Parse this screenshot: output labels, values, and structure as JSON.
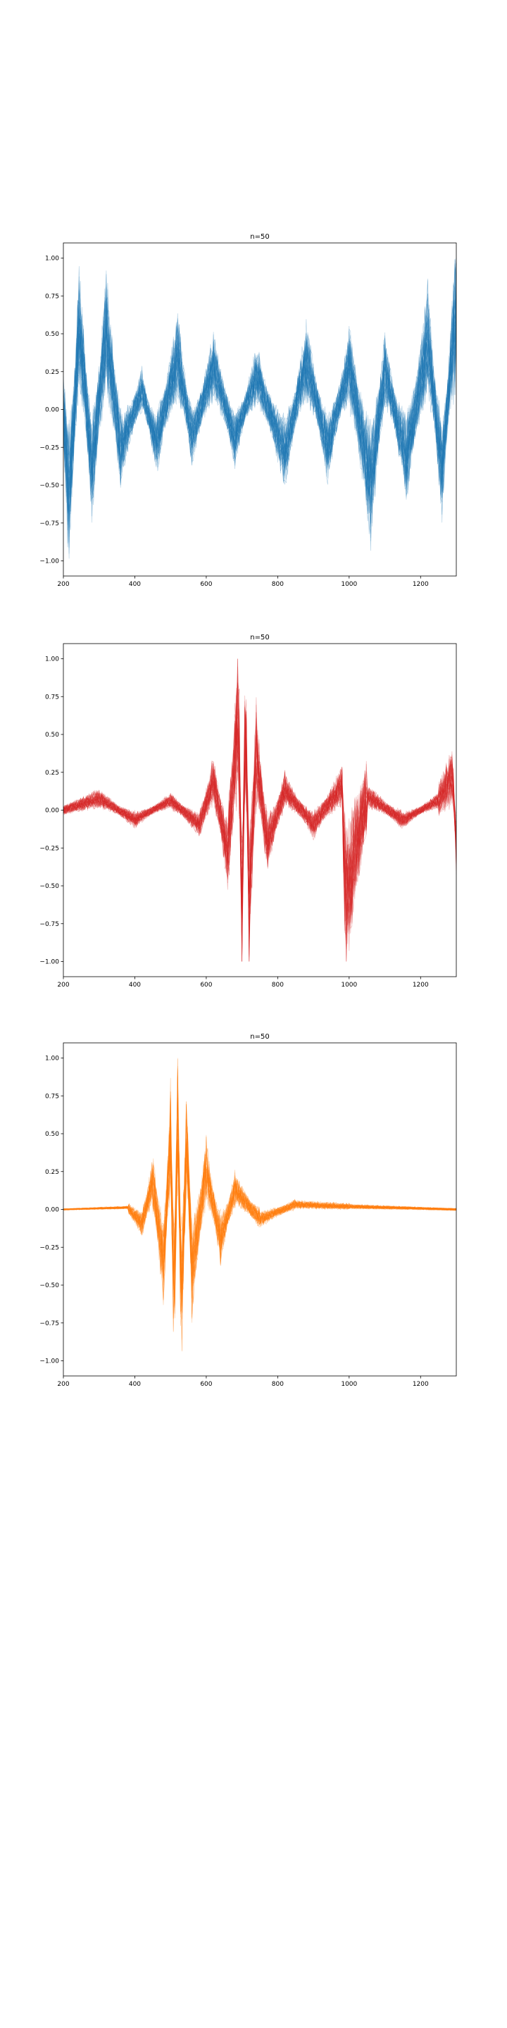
{
  "chart_data": [
    {
      "type": "line",
      "title": "n=50",
      "xlabel": "",
      "ylabel": "",
      "xlim": [
        200,
        1300
      ],
      "ylim": [
        -1.1,
        1.1
      ],
      "xticks": [
        200,
        400,
        600,
        800,
        1000,
        1200
      ],
      "xtick_labels": [
        "200",
        "400",
        "600",
        "800",
        "1000",
        "1200"
      ],
      "yticks": [
        1.0,
        0.75,
        0.5,
        0.25,
        0.0,
        -0.25,
        -0.5,
        -0.75,
        -1.0
      ],
      "ytick_labels": [
        "1.00",
        "0.75",
        "0.50",
        "0.25",
        "0.00",
        "−0.25",
        "−0.50",
        "−0.75",
        "−1.00"
      ],
      "grid": false,
      "legend": "none",
      "color": "#1f77b4",
      "n_series": 50,
      "series_profile": {
        "shape": "noise rising after x≈700, sparse spikes earlier",
        "points": [
          [
            200,
            0.0
          ],
          [
            215,
            -0.95
          ],
          [
            245,
            0.84
          ],
          [
            280,
            -0.6
          ],
          [
            320,
            0.8
          ],
          [
            360,
            -0.4
          ],
          [
            420,
            0.2
          ],
          [
            460,
            -0.35
          ],
          [
            520,
            0.55
          ],
          [
            560,
            -0.3
          ],
          [
            620,
            0.45
          ],
          [
            680,
            -0.3
          ],
          [
            740,
            0.35
          ],
          [
            820,
            -0.45
          ],
          [
            880,
            0.5
          ],
          [
            940,
            -0.4
          ],
          [
            1000,
            0.45
          ],
          [
            1060,
            -0.77
          ],
          [
            1100,
            0.4
          ],
          [
            1160,
            -0.5
          ],
          [
            1220,
            0.7
          ],
          [
            1260,
            -0.6
          ],
          [
            1290,
            0.68
          ],
          [
            1300,
            1.0
          ]
        ]
      }
    },
    {
      "type": "line",
      "title": "n=50",
      "xlabel": "",
      "ylabel": "",
      "xlim": [
        200,
        1300
      ],
      "ylim": [
        -1.1,
        1.1
      ],
      "xticks": [
        200,
        400,
        600,
        800,
        1000,
        1200
      ],
      "xtick_labels": [
        "200",
        "400",
        "600",
        "800",
        "1000",
        "1200"
      ],
      "yticks": [
        1.0,
        0.75,
        0.5,
        0.25,
        0.0,
        -0.25,
        -0.5,
        -0.75,
        -1.0
      ],
      "ytick_labels": [
        "1.00",
        "0.75",
        "0.50",
        "0.25",
        "0.00",
        "−0.25",
        "−0.50",
        "−0.75",
        "−1.00"
      ],
      "grid": false,
      "legend": "none",
      "color": "#d62728",
      "n_series": 50,
      "series_profile": {
        "shape": "burst centered near x≈700, low noise elsewhere",
        "points": [
          [
            200,
            0.0
          ],
          [
            300,
            0.12
          ],
          [
            400,
            -0.1
          ],
          [
            500,
            0.1
          ],
          [
            580,
            -0.15
          ],
          [
            620,
            0.3
          ],
          [
            660,
            -0.45
          ],
          [
            690,
            1.0
          ],
          [
            700,
            -1.0
          ],
          [
            710,
            1.0
          ],
          [
            720,
            -0.95
          ],
          [
            740,
            0.6
          ],
          [
            770,
            -0.35
          ],
          [
            820,
            0.2
          ],
          [
            900,
            -0.15
          ],
          [
            980,
            0.25
          ],
          [
            990,
            -0.9
          ],
          [
            1050,
            0.15
          ],
          [
            1150,
            -0.1
          ],
          [
            1250,
            0.1
          ],
          [
            1290,
            0.35
          ],
          [
            1300,
            -0.35
          ]
        ]
      }
    },
    {
      "type": "line",
      "title": "n=50",
      "xlabel": "",
      "ylabel": "",
      "xlim": [
        200,
        1300
      ],
      "ylim": [
        -1.1,
        1.1
      ],
      "xticks": [
        200,
        400,
        600,
        800,
        1000,
        1200
      ],
      "xtick_labels": [
        "200",
        "400",
        "600",
        "800",
        "1000",
        "1200"
      ],
      "yticks": [
        1.0,
        0.75,
        0.5,
        0.25,
        0.0,
        -0.25,
        -0.5,
        -0.75,
        -1.0
      ],
      "ytick_labels": [
        "1.00",
        "0.75",
        "0.50",
        "0.25",
        "0.00",
        "−0.25",
        "−0.50",
        "−0.75",
        "−1.00"
      ],
      "grid": false,
      "legend": "none",
      "color": "#ff7f0e",
      "n_series": 50,
      "series_profile": {
        "shape": "burst centered near x≈520, decaying tail",
        "points": [
          [
            200,
            0.0
          ],
          [
            380,
            0.02
          ],
          [
            420,
            -0.15
          ],
          [
            450,
            0.3
          ],
          [
            480,
            -0.55
          ],
          [
            500,
            0.7
          ],
          [
            510,
            -1.0
          ],
          [
            520,
            1.0
          ],
          [
            530,
            -1.0
          ],
          [
            545,
            0.75
          ],
          [
            560,
            -0.6
          ],
          [
            600,
            0.4
          ],
          [
            640,
            -0.3
          ],
          [
            680,
            0.2
          ],
          [
            750,
            -0.1
          ],
          [
            850,
            0.05
          ],
          [
            1000,
            0.03
          ],
          [
            1300,
            0.0
          ]
        ]
      }
    }
  ]
}
